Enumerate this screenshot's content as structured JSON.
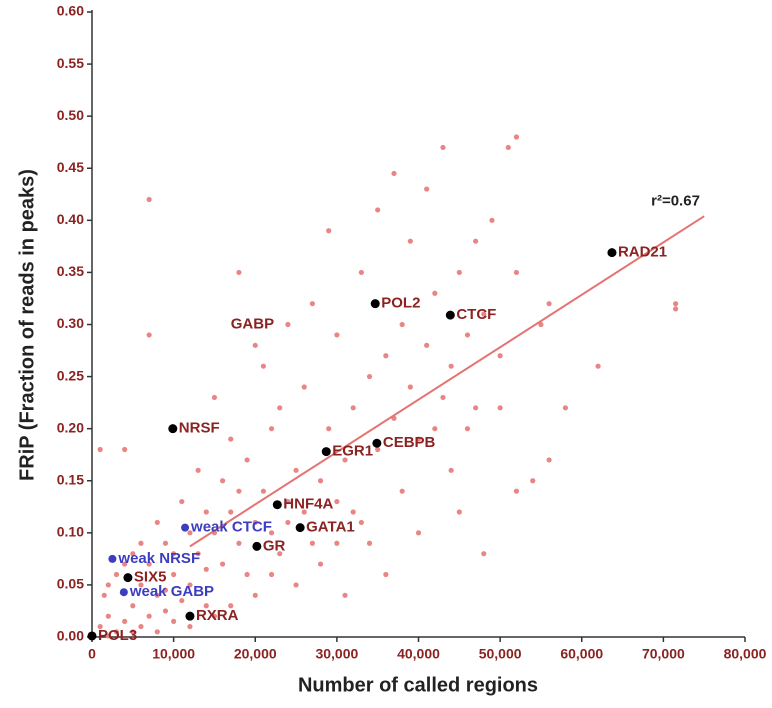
{
  "chart_data": {
    "type": "scatter",
    "x_label": "Number of called regions",
    "y_label": "FRiP (Fraction of reads in peaks)",
    "xlim": [
      0,
      80000
    ],
    "ylim": [
      0,
      0.6
    ],
    "xticks": [
      0,
      {
        "value": 10000,
        "label": "10,000"
      },
      {
        "value": 20000,
        "label": "20,000"
      },
      {
        "value": 30000,
        "label": "30,000"
      },
      {
        "value": 40000,
        "label": "40,000"
      },
      {
        "value": 50000,
        "label": "50,000"
      },
      {
        "value": 60000,
        "label": "60,000"
      },
      {
        "value": 70000,
        "label": "70,000"
      },
      {
        "value": 80000,
        "label": "80,000"
      }
    ],
    "yticks": [
      {
        "value": 0,
        "label": "0.00"
      },
      0.05,
      {
        "value": 0.1,
        "label": "0.10"
      },
      0.15,
      {
        "value": 0.2,
        "label": "0.20"
      },
      0.25,
      {
        "value": 0.3,
        "label": "0.30"
      },
      0.35,
      {
        "value": 0.4,
        "label": "0.40"
      },
      0.45,
      {
        "value": 0.5,
        "label": "0.50"
      },
      0.55,
      {
        "value": 0.6,
        "label": "0.60"
      }
    ],
    "annotations": [
      {
        "text": "GABP",
        "x": 17000,
        "y": 0.3
      },
      {
        "text": "r²=0.67",
        "x": 68500,
        "y": 0.418
      }
    ],
    "series": [
      {
        "type": "scatter",
        "color": "#e98585",
        "size": 2.6,
        "x": [
          1000,
          2000,
          3000,
          4000,
          5000,
          6000,
          7000,
          8000,
          9000,
          10000,
          11000,
          1500,
          3000,
          5000,
          6000,
          7000,
          8000,
          9000,
          10000,
          12000,
          13000,
          14000,
          15000,
          16000,
          17000,
          18000,
          19000,
          20000,
          21000,
          22000,
          23000,
          24000,
          25000,
          26000,
          27000,
          28000,
          29000,
          30000,
          31000,
          32000,
          33000,
          34000,
          35000,
          36000,
          37000,
          38000,
          39000,
          40000,
          41000,
          42000,
          43000,
          44000,
          45000,
          46000,
          47000,
          48000,
          50000,
          52000,
          55000,
          56000,
          58000,
          62000,
          71500,
          71500,
          52000,
          51000,
          43000,
          41000,
          37000,
          49000,
          7000,
          7000,
          18000,
          29000,
          4000,
          1000,
          15000,
          20000,
          24000,
          17000,
          13000,
          11000,
          36000,
          40000,
          45000,
          48000,
          52000,
          56000,
          54000,
          33000,
          30000,
          26000,
          22000,
          19000,
          16000,
          14000,
          12000,
          10000,
          8000,
          6000,
          4000,
          2000,
          25000,
          28000,
          31000,
          34000,
          38000,
          42000,
          44000,
          47000,
          39000,
          35000,
          27000,
          21000,
          23000,
          18000,
          20000,
          15000,
          17000,
          22000,
          12000,
          5000,
          2000,
          9000,
          14000,
          24000,
          30000,
          32000,
          46000,
          50000
        ],
        "values": [
          0.01,
          0.02,
          0.005,
          0.015,
          0.03,
          0.01,
          0.02,
          0.005,
          0.025,
          0.015,
          0.035,
          0.04,
          0.06,
          0.08,
          0.05,
          0.07,
          0.04,
          0.09,
          0.06,
          0.05,
          0.08,
          0.03,
          0.1,
          0.07,
          0.12,
          0.09,
          0.06,
          0.11,
          0.14,
          0.1,
          0.08,
          0.13,
          0.16,
          0.12,
          0.09,
          0.15,
          0.2,
          0.13,
          0.17,
          0.22,
          0.11,
          0.25,
          0.18,
          0.27,
          0.21,
          0.3,
          0.24,
          0.19,
          0.28,
          0.33,
          0.23,
          0.26,
          0.35,
          0.29,
          0.22,
          0.31,
          0.27,
          0.35,
          0.3,
          0.32,
          0.22,
          0.26,
          0.32,
          0.315,
          0.48,
          0.47,
          0.47,
          0.43,
          0.445,
          0.4,
          0.42,
          0.29,
          0.35,
          0.39,
          0.18,
          0.18,
          0.23,
          0.28,
          0.3,
          0.19,
          0.16,
          0.13,
          0.06,
          0.1,
          0.12,
          0.08,
          0.14,
          0.17,
          0.15,
          0.35,
          0.29,
          0.24,
          0.2,
          0.17,
          0.15,
          0.12,
          0.1,
          0.08,
          0.11,
          0.09,
          0.07,
          0.05,
          0.05,
          0.07,
          0.04,
          0.09,
          0.14,
          0.2,
          0.16,
          0.38,
          0.38,
          0.41,
          0.32,
          0.26,
          0.22,
          0.14,
          0.04,
          0.02,
          0.03,
          0.06,
          0.01,
          0.005,
          0.001,
          0.045,
          0.065,
          0.11,
          0.09,
          0.12,
          0.2,
          0.22
        ]
      },
      {
        "type": "line",
        "color": "#e57373",
        "x": [
          12000,
          75000
        ],
        "values": [
          0.087,
          0.404
        ]
      },
      {
        "type": "scatter",
        "color": "#000000",
        "size": 4.5,
        "label_color": "#8b2323",
        "x": [
          63700,
          34700,
          43900,
          9900,
          28700,
          34900,
          22700,
          25500,
          20200,
          4400,
          12000,
          0
        ],
        "values": [
          0.369,
          0.32,
          0.309,
          0.2,
          0.178,
          0.186,
          0.127,
          0.105,
          0.087,
          0.057,
          0.02,
          0.001
        ],
        "point_labels": [
          "RAD21",
          "POL2",
          "CTCF",
          "NRSF",
          "EGR1",
          "CEBPB",
          "HNF4A",
          "GATA1",
          "GR",
          "SIX5",
          "RXRA",
          "POL3"
        ]
      },
      {
        "type": "scatter",
        "color": "#3d3dc0",
        "size": 4,
        "label_color": "#3d3dc0",
        "x": [
          11400,
          2500,
          3900
        ],
        "values": [
          0.105,
          0.075,
          0.043
        ],
        "point_labels": [
          "weak CTCF",
          "weak NRSF",
          "weak GABP"
        ]
      }
    ]
  }
}
